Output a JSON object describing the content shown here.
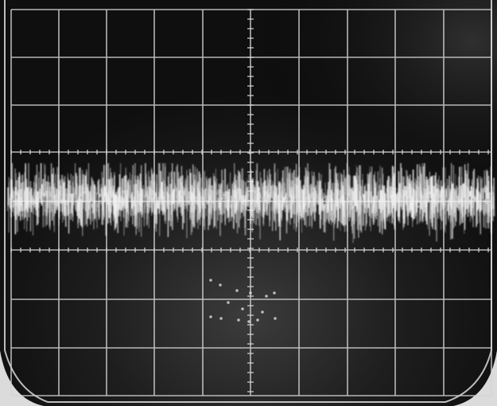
{
  "scope": {
    "colors": {
      "background": "#101010",
      "bezel": "#e8e8e8",
      "graticule": "#d4d4d4",
      "trace": "#f2f2f2",
      "glow": "#3a3a3a"
    }
  }
}
